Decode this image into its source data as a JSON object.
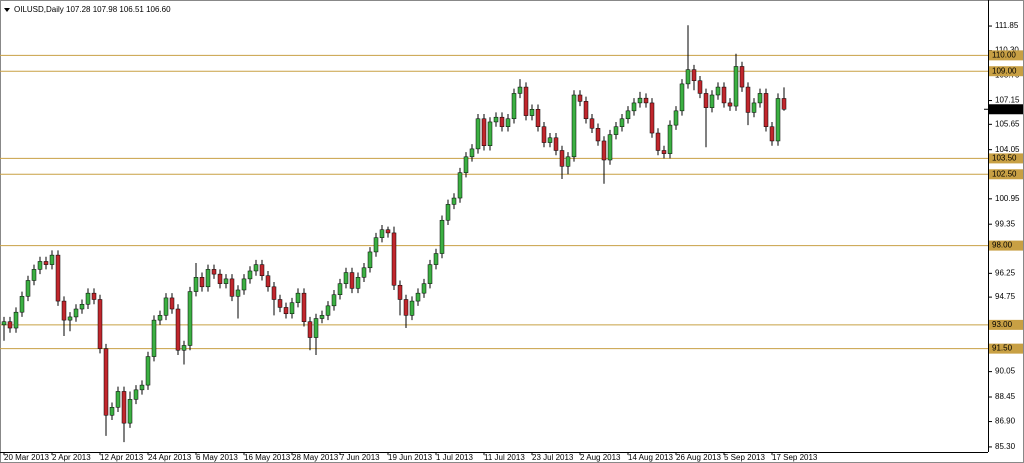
{
  "chart_data": {
    "type": "candlestick",
    "title": "OILUSD,Daily",
    "subtitle": "107.28 107.98 106.51 106.60",
    "categories": [
      "20 Mar 2013",
      null,
      null,
      null,
      null,
      null,
      null,
      null,
      "2 Apr 2013",
      null,
      null,
      null,
      null,
      null,
      null,
      null,
      "12 Apr 2013",
      null,
      null,
      null,
      null,
      null,
      null,
      null,
      "24 Apr 2013",
      null,
      null,
      null,
      null,
      null,
      null,
      null,
      "6 May 2013",
      null,
      null,
      null,
      null,
      null,
      null,
      null,
      "16 May 2013",
      null,
      null,
      null,
      null,
      null,
      null,
      null,
      "28 May 2013",
      null,
      null,
      null,
      null,
      null,
      null,
      null,
      "7 Jun 2013",
      null,
      null,
      null,
      null,
      null,
      null,
      null,
      "19 Jun 2013",
      null,
      null,
      null,
      null,
      null,
      null,
      null,
      "1 Jul 2013",
      null,
      null,
      null,
      null,
      null,
      null,
      null,
      "11 Jul 2013",
      null,
      null,
      null,
      null,
      null,
      null,
      null,
      "23 Jul 2013",
      null,
      null,
      null,
      null,
      null,
      null,
      null,
      "2 Aug 2013",
      null,
      null,
      null,
      null,
      null,
      null,
      null,
      "14 Aug 2013",
      null,
      null,
      null,
      null,
      null,
      null,
      null,
      "26 Aug 2013",
      null,
      null,
      null,
      null,
      null,
      null,
      null,
      "5 Sep 2013",
      null,
      null,
      null,
      null,
      null,
      null,
      null,
      "17 Sep 2013",
      null,
      null
    ],
    "open": [
      93.0,
      93.2,
      92.8,
      93.8,
      94.8,
      95.8,
      96.5,
      97.0,
      96.8,
      97.4,
      94.5,
      93.3,
      93.5,
      94.0,
      94.3,
      95.0,
      94.6,
      91.5,
      87.3,
      87.8,
      88.8,
      86.8,
      88.3,
      88.9,
      89.2,
      91.0,
      93.3,
      93.6,
      94.7,
      94.0,
      91.4,
      91.7,
      95.1,
      96.0,
      95.4,
      96.5,
      96.2,
      95.6,
      95.9,
      94.8,
      95.2,
      95.9,
      96.4,
      96.8,
      96.1,
      95.4,
      94.6,
      94.1,
      93.7,
      94.4,
      95.0,
      93.2,
      92.2,
      93.4,
      93.6,
      94.2,
      94.9,
      95.6,
      96.3,
      95.3,
      96.0,
      96.6,
      97.6,
      98.5,
      99.0,
      98.8,
      95.5,
      94.6,
      93.6,
      94.5,
      95.0,
      95.6,
      96.8,
      97.5,
      99.6,
      100.6,
      101.0,
      102.6,
      103.6,
      104.1,
      106.0,
      104.3,
      105.8,
      106.1,
      105.5,
      106.0,
      107.6,
      108.0,
      106.2,
      106.6,
      105.5,
      104.5,
      104.8,
      104.0,
      103.0,
      103.6,
      107.5,
      107.1,
      106.0,
      105.4,
      104.6,
      103.4,
      105.0,
      105.5,
      106.0,
      106.5,
      107.0,
      107.3,
      107.0,
      105.1,
      104.0,
      103.8,
      105.6,
      106.5,
      108.2,
      109.1,
      108.4,
      107.6,
      106.7,
      107.5,
      108.0,
      107.0,
      106.8,
      109.3,
      108.0,
      106.4,
      107.0,
      107.6,
      105.5,
      104.6,
      107.28
    ],
    "high": [
      93.5,
      93.5,
      94.1,
      95.1,
      96.1,
      96.8,
      97.3,
      97.3,
      97.7,
      97.7,
      94.8,
      93.8,
      94.3,
      94.6,
      95.3,
      95.3,
      94.9,
      91.8,
      88.1,
      89.1,
      89.1,
      88.8,
      89.2,
      89.5,
      91.3,
      93.6,
      93.9,
      95.0,
      95.0,
      94.3,
      92.0,
      95.4,
      96.9,
      96.3,
      96.8,
      96.8,
      96.5,
      96.2,
      96.2,
      95.5,
      96.2,
      96.7,
      97.1,
      97.1,
      96.4,
      95.7,
      94.9,
      94.4,
      94.7,
      95.3,
      95.3,
      93.5,
      93.7,
      93.9,
      94.5,
      95.2,
      95.9,
      96.6,
      96.6,
      96.3,
      96.9,
      97.9,
      98.8,
      99.3,
      99.2,
      99.2,
      95.8,
      94.9,
      94.8,
      95.3,
      95.9,
      97.1,
      97.8,
      99.9,
      100.9,
      101.3,
      102.9,
      103.9,
      104.4,
      106.3,
      106.3,
      106.1,
      106.4,
      106.4,
      106.3,
      107.9,
      108.5,
      108.3,
      106.9,
      106.9,
      105.8,
      105.1,
      105.1,
      104.3,
      103.9,
      107.8,
      107.8,
      107.4,
      106.3,
      105.7,
      104.9,
      105.3,
      105.8,
      106.3,
      106.8,
      107.3,
      107.7,
      107.6,
      107.3,
      105.4,
      104.3,
      105.9,
      106.8,
      108.5,
      111.9,
      109.4,
      108.7,
      107.9,
      107.8,
      108.3,
      108.3,
      107.3,
      110.1,
      109.6,
      108.3,
      107.3,
      107.9,
      107.9,
      105.8,
      107.6,
      107.98
    ],
    "low": [
      92.0,
      92.5,
      92.5,
      93.5,
      94.5,
      95.5,
      96.2,
      96.5,
      96.5,
      94.2,
      92.3,
      92.6,
      93.2,
      93.7,
      94.0,
      94.3,
      91.2,
      86.0,
      87.0,
      87.5,
      85.6,
      86.5,
      88.0,
      88.6,
      88.9,
      90.7,
      93.0,
      93.3,
      93.7,
      91.1,
      90.5,
      91.4,
      94.8,
      95.1,
      95.1,
      95.9,
      95.3,
      95.3,
      94.5,
      93.4,
      94.9,
      95.6,
      96.1,
      95.8,
      95.1,
      93.6,
      93.8,
      93.4,
      93.4,
      94.1,
      92.9,
      91.4,
      91.1,
      93.1,
      93.3,
      93.9,
      94.6,
      95.3,
      95.0,
      95.0,
      95.7,
      96.3,
      97.3,
      98.2,
      98.5,
      95.2,
      93.6,
      92.8,
      93.3,
      94.2,
      94.7,
      95.3,
      96.5,
      97.2,
      99.3,
      100.3,
      100.7,
      102.3,
      103.3,
      103.8,
      104.0,
      104.0,
      105.5,
      105.2,
      105.2,
      105.7,
      107.3,
      105.9,
      105.9,
      105.2,
      104.2,
      104.2,
      103.7,
      102.2,
      102.5,
      103.3,
      106.8,
      105.7,
      105.1,
      104.3,
      101.9,
      103.1,
      104.7,
      105.2,
      105.7,
      106.2,
      106.7,
      106.7,
      104.8,
      103.7,
      103.5,
      103.5,
      105.3,
      106.2,
      107.9,
      107.8,
      107.3,
      104.2,
      106.4,
      107.2,
      106.7,
      106.5,
      106.5,
      107.7,
      105.6,
      106.1,
      106.7,
      105.2,
      104.3,
      104.3,
      106.51
    ],
    "close": [
      93.2,
      92.8,
      93.8,
      94.8,
      95.8,
      96.5,
      97.0,
      96.8,
      97.4,
      94.5,
      93.3,
      93.5,
      94.0,
      94.3,
      95.0,
      94.6,
      91.5,
      87.3,
      87.8,
      88.8,
      86.8,
      88.3,
      88.9,
      89.2,
      91.0,
      93.3,
      93.6,
      94.7,
      94.0,
      91.4,
      91.7,
      95.1,
      96.0,
      95.4,
      96.5,
      96.2,
      95.6,
      95.9,
      94.8,
      95.2,
      95.9,
      96.4,
      96.8,
      96.1,
      95.4,
      94.6,
      94.1,
      93.7,
      94.4,
      95.0,
      93.2,
      92.2,
      93.4,
      93.6,
      94.2,
      94.9,
      95.6,
      96.3,
      95.3,
      96.0,
      96.6,
      97.6,
      98.5,
      99.0,
      98.8,
      95.5,
      94.6,
      93.6,
      94.5,
      95.0,
      95.6,
      96.8,
      97.5,
      99.6,
      100.6,
      101.0,
      102.6,
      103.6,
      104.1,
      106.0,
      104.3,
      105.8,
      106.1,
      105.5,
      106.0,
      107.6,
      108.0,
      106.2,
      106.6,
      105.5,
      104.5,
      104.8,
      104.0,
      103.0,
      103.6,
      107.5,
      107.1,
      106.0,
      105.4,
      104.6,
      103.4,
      105.0,
      105.5,
      106.0,
      106.5,
      107.0,
      107.3,
      107.0,
      105.1,
      104.0,
      103.8,
      105.6,
      106.5,
      108.2,
      109.1,
      108.4,
      107.6,
      106.7,
      107.5,
      108.0,
      107.0,
      106.8,
      109.3,
      108.0,
      106.4,
      107.0,
      107.6,
      105.5,
      104.6,
      107.28,
      106.6
    ],
    "up_color": "#3cb043",
    "down_color": "#c1272d",
    "wick_color": "#000000",
    "ylim": [
      84.98,
      113.24
    ],
    "yticks": [
      111.85,
      {
        "value": 110.3,
        "label": "110.30"
      },
      108.75,
      107.15,
      105.65,
      104.05,
      100.95,
      99.35,
      96.25,
      94.75,
      90.05,
      88.45,
      {
        "value": 86.9,
        "label": "86.90"
      },
      {
        "value": 85.3,
        "label": "85.30"
      }
    ],
    "levels": [
      {
        "value": 110,
        "label": "110.00"
      },
      {
        "value": 109,
        "label": "109.00"
      },
      {
        "value": 103.5,
        "label": "103.50"
      },
      {
        "value": 102.5,
        "label": "102.50"
      },
      {
        "value": 98,
        "label": "98.00"
      },
      {
        "value": 93,
        "label": "93.00"
      },
      {
        "value": 91.5,
        "label": "91.50"
      }
    ],
    "level_color": "#c8a044",
    "current_price": {
      "value": 106.6,
      "label": "106.60"
    },
    "grid": false
  }
}
